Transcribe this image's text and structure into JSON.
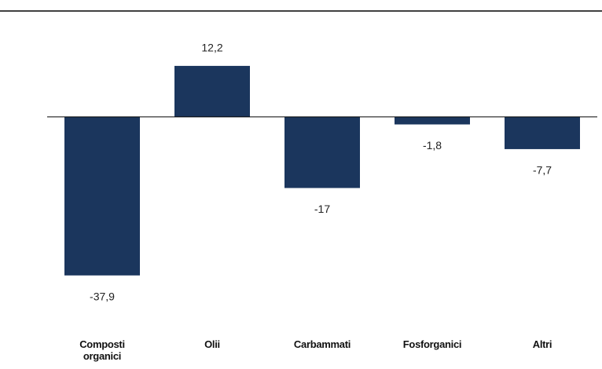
{
  "chart_data": {
    "type": "bar",
    "categories": [
      "Composti organici",
      "Olii",
      "Carbammati",
      "Fosforganici",
      "Altri"
    ],
    "values": [
      -37.9,
      12.2,
      -17,
      -1.8,
      -7.7
    ],
    "value_labels": [
      "-37,9",
      "12,2",
      "-17",
      "-1,8",
      "-7,7"
    ],
    "color": "#1b365d",
    "ylim": [
      -40,
      15
    ]
  }
}
